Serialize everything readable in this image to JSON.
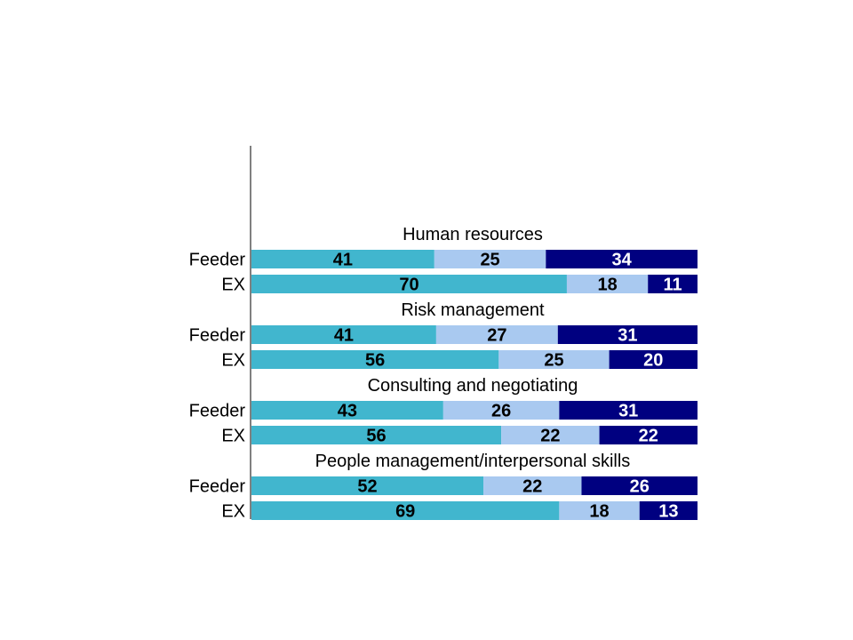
{
  "chart_data": {
    "type": "bar",
    "orientation": "horizontal",
    "stacked": true,
    "normalized_to": 100,
    "colors": [
      "#41b6ce",
      "#a9c9f0",
      "#000080"
    ],
    "label_colors": [
      "#000000",
      "#000000",
      "#ffffff"
    ],
    "groups": [
      {
        "title": "Human resources",
        "rows": [
          {
            "label": "Feeder",
            "values": [
              41,
              25,
              34
            ]
          },
          {
            "label": "EX",
            "values": [
              70,
              18,
              11
            ]
          }
        ]
      },
      {
        "title": "Risk management",
        "rows": [
          {
            "label": "Feeder",
            "values": [
              41,
              27,
              31
            ]
          },
          {
            "label": "EX",
            "values": [
              56,
              25,
              20
            ]
          }
        ]
      },
      {
        "title": "Consulting and negotiating",
        "rows": [
          {
            "label": "Feeder",
            "values": [
              43,
              26,
              31
            ]
          },
          {
            "label": "EX",
            "values": [
              56,
              22,
              22
            ]
          }
        ]
      },
      {
        "title": "People management/interpersonal skills",
        "rows": [
          {
            "label": "Feeder",
            "values": [
              52,
              22,
              26
            ]
          },
          {
            "label": "EX",
            "values": [
              69,
              18,
              13
            ]
          }
        ]
      }
    ],
    "legend": "none",
    "grid": false
  }
}
